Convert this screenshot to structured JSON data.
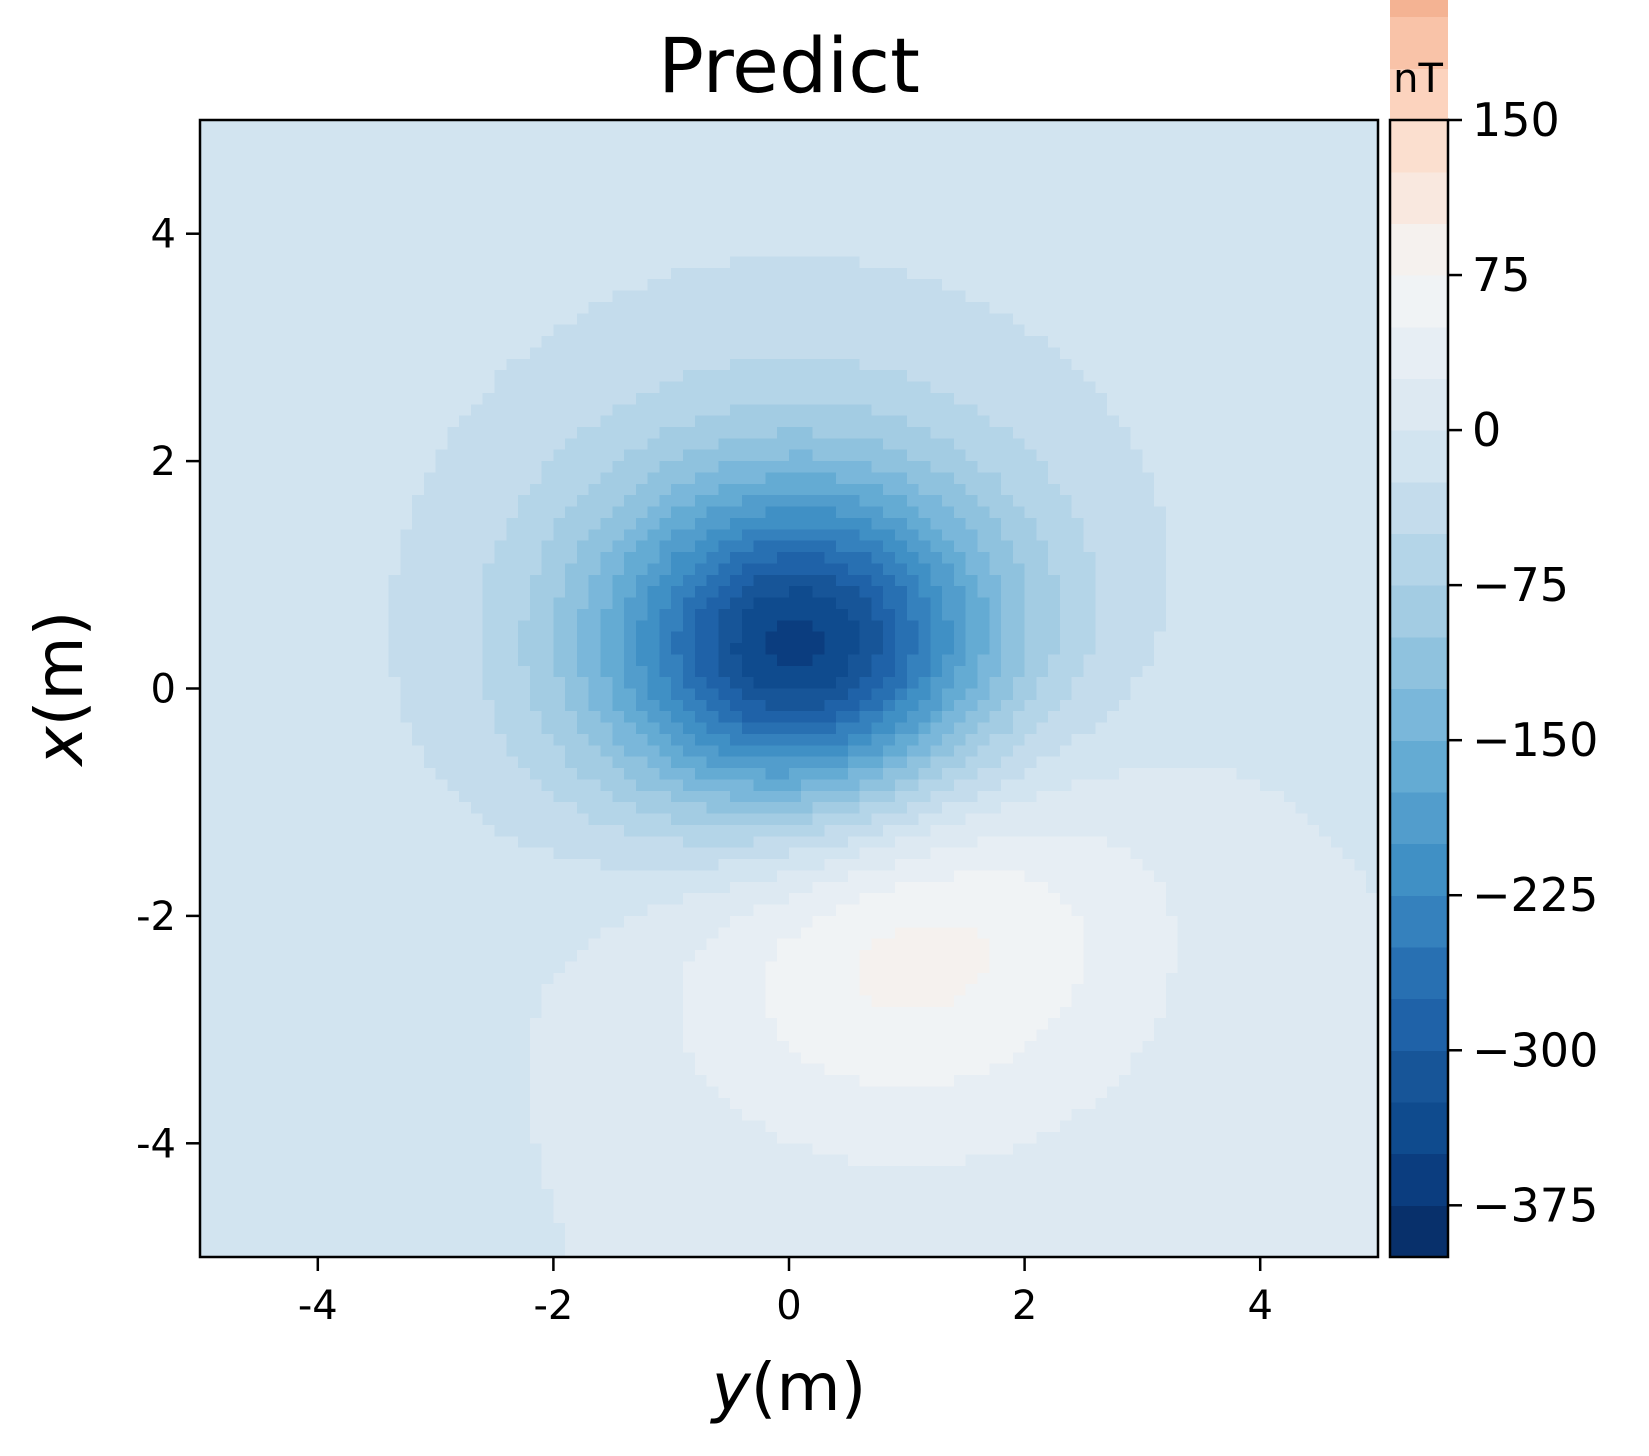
{
  "chart_data": {
    "type": "heatmap",
    "title": "Predict",
    "xlabel_var": "y",
    "xlabel_unit": "(m)",
    "ylabel_var": "x",
    "ylabel_unit": "(m)",
    "xlim": [
      -5,
      5
    ],
    "ylim": [
      -5,
      5
    ],
    "xticks": [
      -4,
      -2,
      0,
      2,
      4
    ],
    "xtick_labels": [
      "-4",
      "-2",
      "0",
      "2",
      "4"
    ],
    "yticks": [
      -4,
      -2,
      0,
      2,
      4
    ],
    "ytick_labels": [
      "-4",
      "-2",
      "0",
      "2",
      "4"
    ],
    "grid": false,
    "colorbar": {
      "unit": "nT",
      "range": [
        -400,
        150
      ],
      "level_step": 25,
      "ticks": [
        -375,
        -300,
        -225,
        -150,
        -75,
        0,
        75,
        150
      ],
      "tick_labels": [
        "−375",
        "−300",
        "−225",
        "−150",
        "−75",
        "0",
        "75",
        "150"
      ],
      "colormap": "RdBu_r",
      "colors": [
        "#08306b",
        "#0b3d7f",
        "#0f4b8e",
        "#175598",
        "#1f62a8",
        "#2870b2",
        "#3581bd",
        "#4090c5",
        "#529dcc",
        "#64abd3",
        "#7ab7da",
        "#8fc2de",
        "#a3cce3",
        "#b4d5e8",
        "#c4dcec",
        "#d2e4f0",
        "#dde9f2",
        "#e7eef4",
        "#f0f3f5",
        "#f5f1ee",
        "#f9e8df",
        "#fbdfcf",
        "#fcd3be",
        "#f9c3a8",
        "#f4b393"
      ]
    },
    "field": {
      "negative_pole": {
        "y": 0.1,
        "x": 0.3,
        "value": -400
      },
      "positive_pole": {
        "y": 0.9,
        "x": -1.9,
        "value": 140
      }
    }
  }
}
